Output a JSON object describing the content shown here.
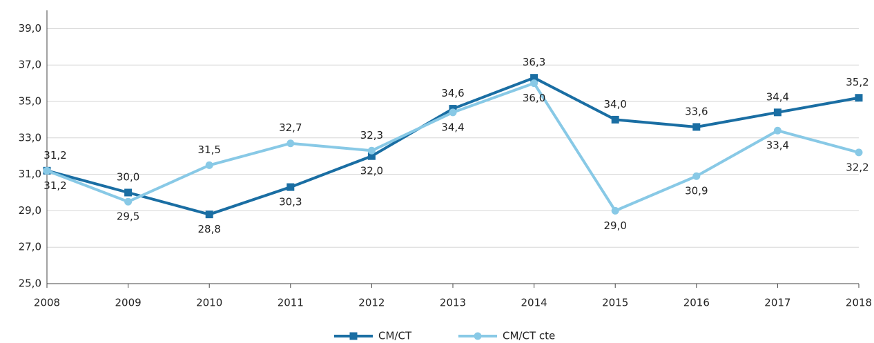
{
  "chart_data": {
    "type": "line",
    "categories": [
      "2008",
      "2009",
      "2010",
      "2011",
      "2012",
      "2013",
      "2014",
      "2015",
      "2016",
      "2017",
      "2018"
    ],
    "series": [
      {
        "name": "CM/CT",
        "color": "#1a6ea3",
        "marker": "square",
        "values": [
          31.2,
          30.0,
          28.8,
          30.3,
          32.0,
          34.6,
          36.3,
          34.0,
          33.6,
          34.4,
          35.2
        ],
        "value_labels": [
          "31,2",
          "30,0",
          "28,8",
          "30,3",
          "32,0",
          "34,6",
          "36,3",
          "34,0",
          "33,6",
          "34,4",
          "35,2"
        ]
      },
      {
        "name": "CM/CT cte",
        "color": "#88c9e6",
        "marker": "circle",
        "values": [
          31.2,
          29.5,
          31.5,
          32.7,
          32.3,
          34.4,
          36.0,
          29.0,
          30.9,
          33.4,
          32.2
        ],
        "value_labels": [
          "31,2",
          "29,5",
          "31,5",
          "32,7",
          "32,3",
          "34,4",
          "36,0",
          "29,0",
          "30,9",
          "33,4",
          "32,2"
        ]
      }
    ],
    "ylim": [
      25,
      40
    ],
    "yticks": [
      {
        "value": 25,
        "label": "25,0"
      },
      {
        "value": 27,
        "label": "27,0"
      },
      {
        "value": 29,
        "label": "29,0"
      },
      {
        "value": 31,
        "label": "31,0"
      },
      {
        "value": 33,
        "label": "33,0"
      },
      {
        "value": 35,
        "label": "35,0"
      },
      {
        "value": 37,
        "label": "37,0"
      },
      {
        "value": 39,
        "label": "39,0"
      }
    ],
    "grid": true,
    "legend": "bottom"
  }
}
